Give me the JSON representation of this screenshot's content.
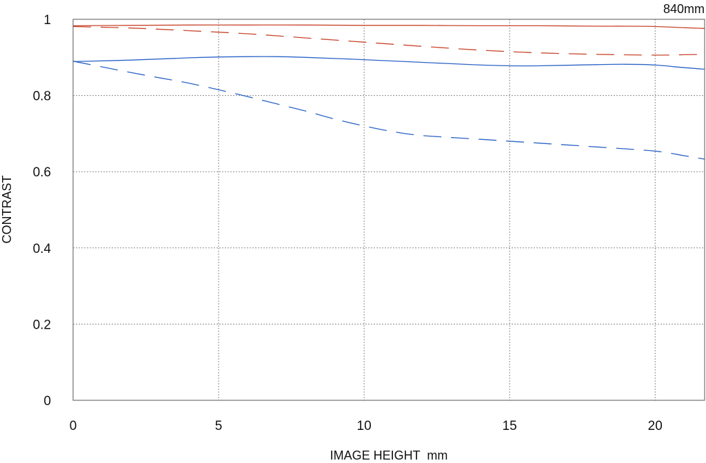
{
  "chart_data": {
    "type": "line",
    "title": "",
    "corner_label": "840mm",
    "xlabel": "IMAGE HEIGHT  mm",
    "ylabel": "CONTRAST",
    "xlim": [
      0,
      21.7
    ],
    "ylim": [
      0,
      1
    ],
    "x_ticks": [
      "0",
      "5",
      "10",
      "15",
      "20"
    ],
    "y_ticks": [
      "0",
      "0.2",
      "0.4",
      "0.6",
      "0.8",
      "1"
    ],
    "grid": true,
    "legend": "none",
    "series": [
      {
        "color": "#c8452c",
        "style": "solid",
        "x": [
          0,
          2,
          4,
          6,
          8,
          10,
          12,
          14,
          16,
          18,
          19,
          20,
          21,
          21.7
        ],
        "y": [
          0.983,
          0.984,
          0.985,
          0.985,
          0.985,
          0.984,
          0.984,
          0.983,
          0.983,
          0.982,
          0.982,
          0.981,
          0.978,
          0.976
        ]
      },
      {
        "color": "#c8452c",
        "style": "dashed",
        "x": [
          0,
          2,
          4,
          6,
          8,
          10,
          12,
          14,
          16,
          18,
          20,
          21,
          21.7
        ],
        "y": [
          0.981,
          0.977,
          0.97,
          0.962,
          0.951,
          0.94,
          0.929,
          0.919,
          0.912,
          0.908,
          0.906,
          0.907,
          0.908
        ]
      },
      {
        "color": "#2a62c6",
        "style": "solid",
        "x": [
          0,
          2,
          4,
          5,
          6,
          7,
          8,
          10,
          12,
          14,
          15,
          16,
          18,
          19,
          20,
          21,
          21.7
        ],
        "y": [
          0.889,
          0.893,
          0.899,
          0.901,
          0.902,
          0.902,
          0.9,
          0.894,
          0.887,
          0.88,
          0.878,
          0.878,
          0.881,
          0.882,
          0.88,
          0.873,
          0.869
        ]
      },
      {
        "color": "#2a62c6",
        "style": "dashed",
        "x": [
          0,
          1,
          2,
          3,
          4,
          5,
          6,
          7,
          8,
          9,
          10,
          11,
          12,
          14,
          16,
          18,
          20,
          21,
          21.7
        ],
        "y": [
          0.89,
          0.875,
          0.86,
          0.846,
          0.832,
          0.815,
          0.797,
          0.778,
          0.759,
          0.738,
          0.72,
          0.705,
          0.695,
          0.685,
          0.675,
          0.665,
          0.654,
          0.642,
          0.633
        ]
      }
    ]
  }
}
